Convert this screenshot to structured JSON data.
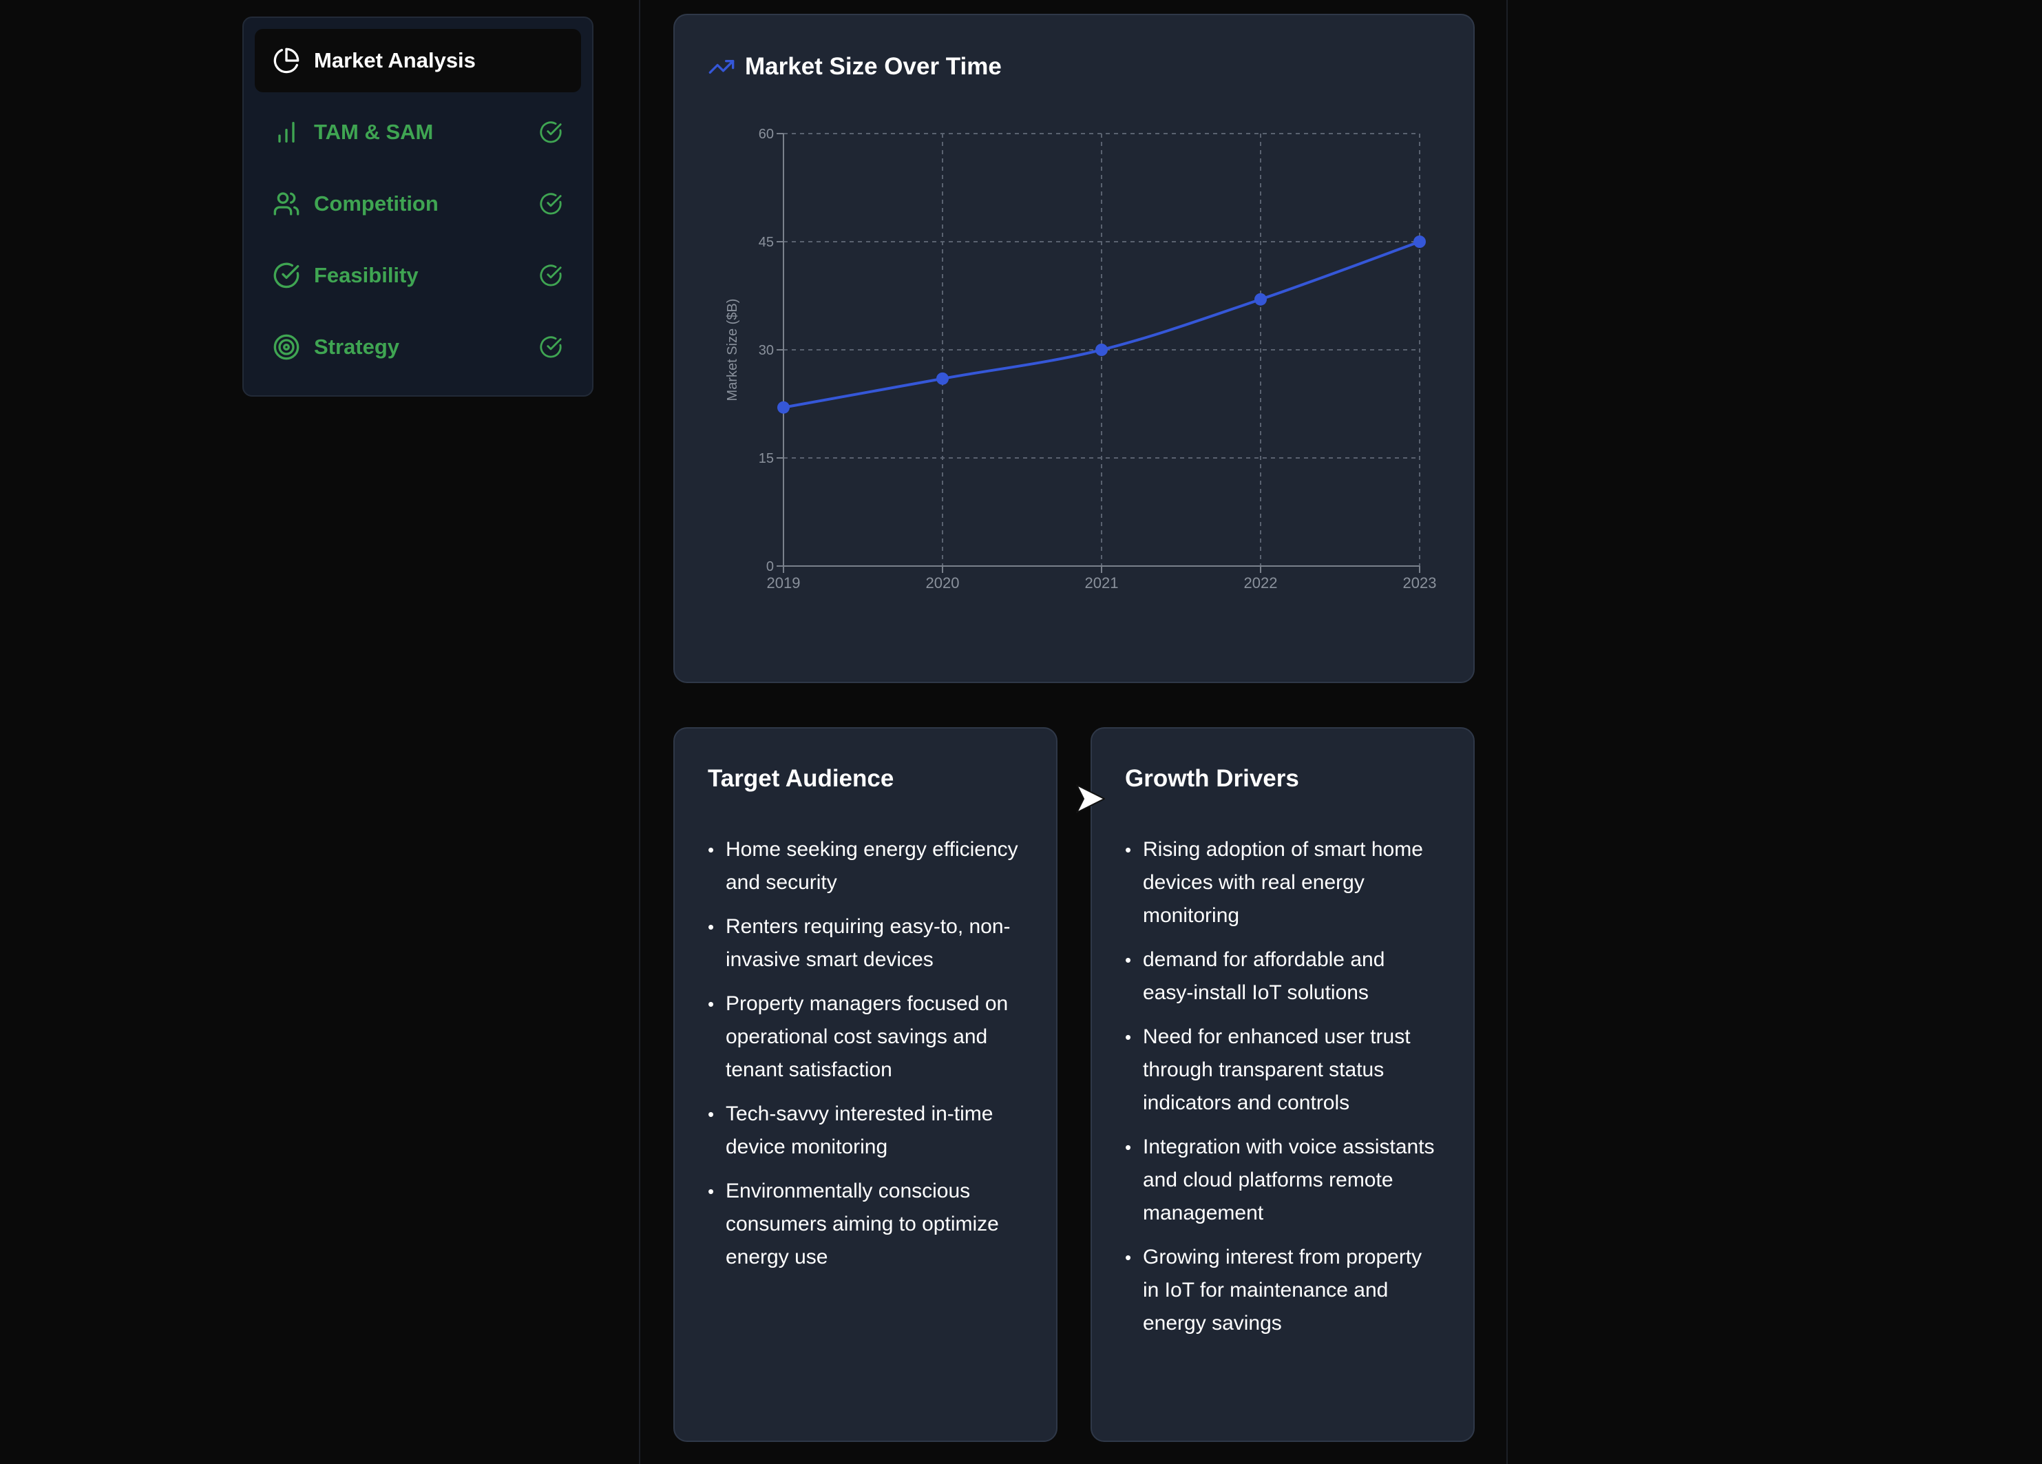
{
  "sidebar": {
    "items": [
      {
        "label": "Market Analysis",
        "icon": "pie-chart-icon",
        "active": true
      },
      {
        "label": "TAM & SAM",
        "icon": "bar-chart-icon",
        "completed": true
      },
      {
        "label": "Competition",
        "icon": "users-icon",
        "completed": true
      },
      {
        "label": "Feasibility",
        "icon": "check-circle-icon",
        "completed": true
      },
      {
        "label": "Strategy",
        "icon": "target-icon",
        "completed": true
      }
    ]
  },
  "colors": {
    "accent_green": "#3fa552",
    "line_blue": "#3557d8",
    "card_bg": "#1f2633",
    "page_bg": "#0a0a0a"
  },
  "market_chart": {
    "title": "Market Size Over Time",
    "icon": "trending-up-icon"
  },
  "chart_data": {
    "type": "line",
    "x": [
      "2019",
      "2020",
      "2021",
      "2022",
      "2023"
    ],
    "series": [
      {
        "values": [
          22,
          26,
          30,
          37,
          45
        ]
      }
    ],
    "ylabel": "Market Size ($B)",
    "xlabel": "",
    "ylim": [
      0,
      60
    ],
    "yticks": [
      0,
      15,
      30,
      45,
      60
    ],
    "grid": true,
    "legend": "none"
  },
  "target_audience": {
    "title": "Target Audience",
    "items": [
      "Home seeking energy efficiency and security",
      "Renters requiring easy-to, non-invasive smart devices",
      "Property managers focused on operational cost savings and tenant satisfaction",
      "Tech-savvy interested in-time device monitoring",
      "Environmentally conscious consumers aiming to optimize energy use"
    ]
  },
  "growth_drivers": {
    "title": "Growth Drivers",
    "items": [
      "Rising adoption of smart home devices with real energy monitoring",
      "demand for affordable and easy-install IoT solutions",
      "Need for enhanced user trust through transparent status indicators and controls",
      "Integration with voice assistants and cloud platforms remote management",
      "Growing interest from property in IoT for maintenance and energy savings"
    ]
  }
}
